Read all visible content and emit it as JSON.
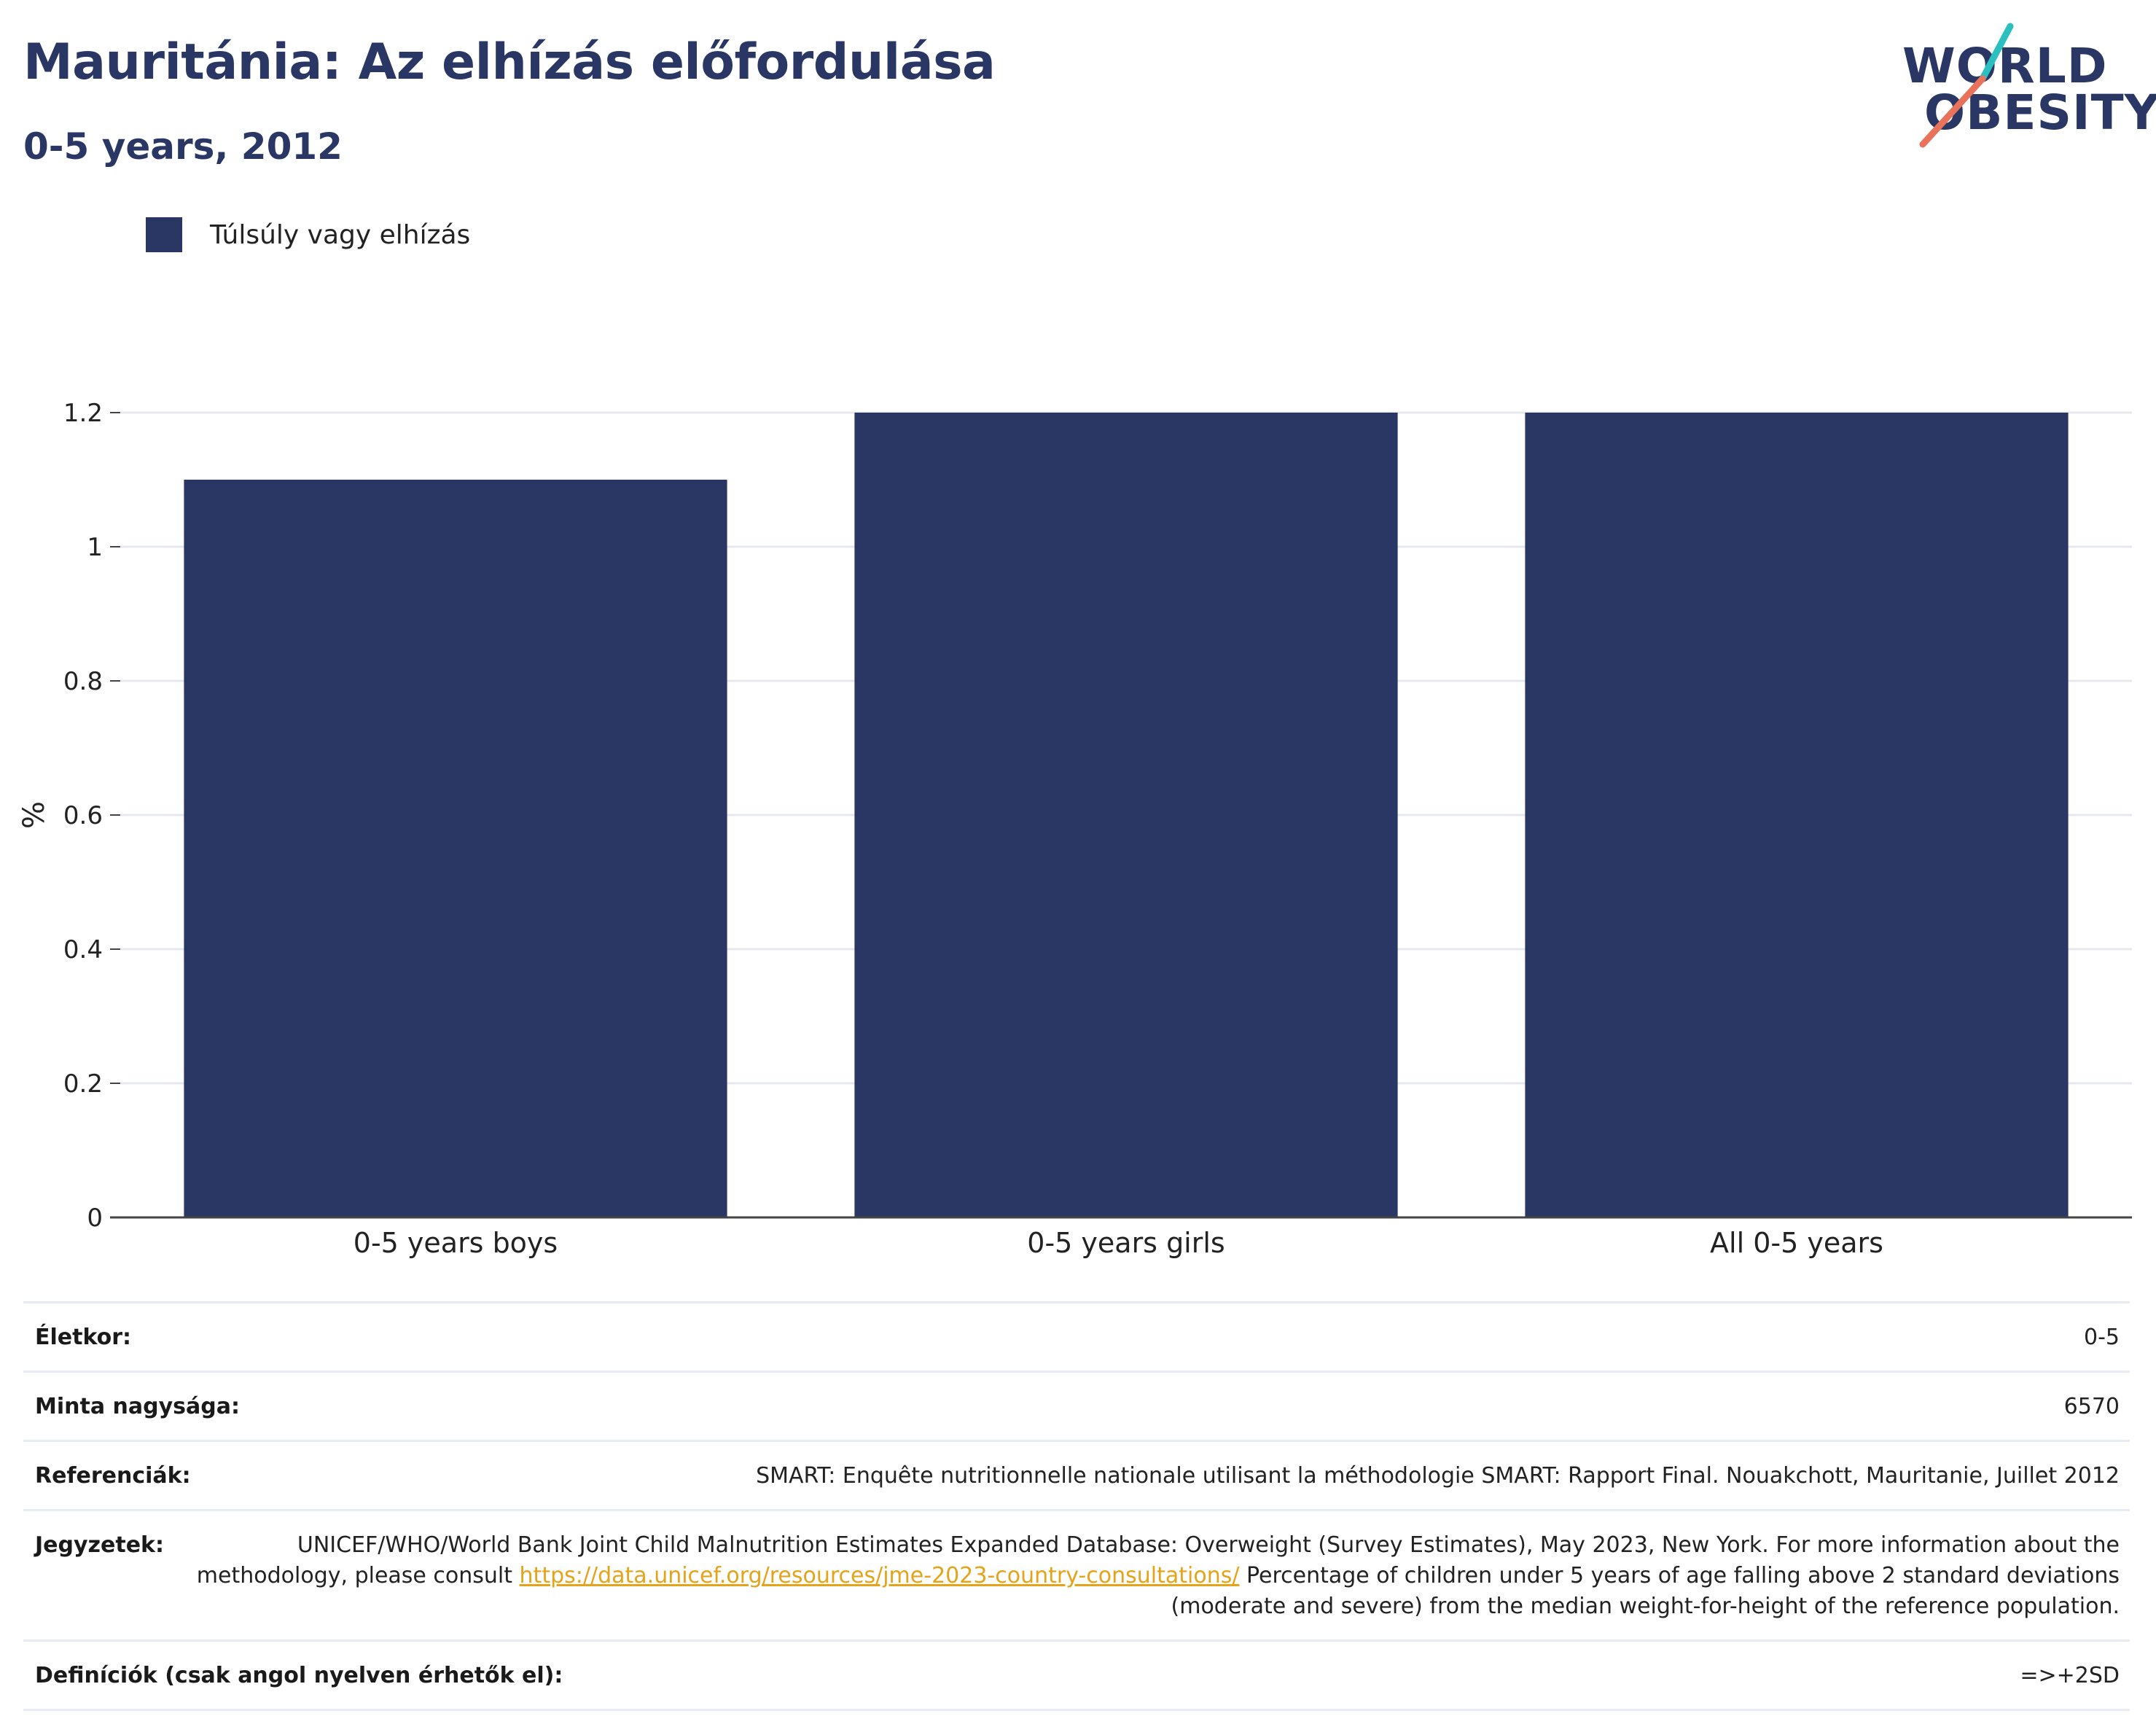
{
  "header": {
    "title": "Mauritánia: Az elhízás előfordulása",
    "subtitle": "0-5 years, 2012"
  },
  "logo": {
    "line1": "WORLD",
    "line2": "OBESITY",
    "colors": {
      "text": "#2a3663",
      "slash_top": "#2bbfc0",
      "slash_bottom": "#e8735a"
    }
  },
  "legend": {
    "label": "Túlsúly vagy elhízás",
    "color": "#2a3663"
  },
  "chart_data": {
    "type": "bar",
    "categories": [
      "0-5 years boys",
      "0-5 years girls",
      "All 0-5 years"
    ],
    "series": [
      {
        "name": "Túlsúly vagy elhízás",
        "values": [
          1.1,
          1.2,
          1.2
        ],
        "color": "#2a3663"
      }
    ],
    "ylabel": "%",
    "ylim": [
      0,
      1.2
    ],
    "yticks": [
      0,
      0.2,
      0.4,
      0.6,
      0.8,
      1,
      1.2
    ],
    "grid": true,
    "legend_position": "top-left"
  },
  "meta": {
    "age": {
      "label": "Életkor:",
      "value": "0-5"
    },
    "sample": {
      "label": "Minta nagysága:",
      "value": "6570"
    },
    "references": {
      "label": "Referenciák:",
      "value": "SMART: Enquête nutritionnelle nationale utilisant la méthodologie SMART: Rapport Final. Nouakchott, Mauritanie, Juillet 2012"
    },
    "notes": {
      "label": "Jegyzetek:",
      "text_before": "UNICEF/WHO/World Bank Joint Child Malnutrition Estimates Expanded Database: Overweight (Survey Estimates), May 2023, New York. For more information about the methodology, please consult ",
      "link": "https://data.unicef.org/resources/jme-2023-country-consultations/",
      "text_after": " Percentage of children under 5 years of age falling above 2 standard deviations (moderate and severe) from the median weight-for-height of the reference population."
    },
    "definitions": {
      "label": "Definíciók (csak angol nyelven érhetők el):",
      "value": "=>+2SD"
    }
  }
}
